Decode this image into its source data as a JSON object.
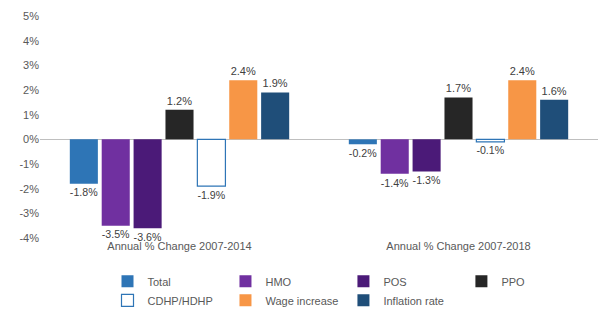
{
  "chart_data": {
    "type": "bar",
    "categories": [
      "Annual % Change 2007-2014",
      "Annual % Change 2007-2018"
    ],
    "series": [
      {
        "name": "Total",
        "color": "#2E75B6",
        "values": [
          -1.8,
          -0.2
        ],
        "value_labels": [
          "-1.8%",
          "-0.2%"
        ]
      },
      {
        "name": "HMO",
        "color": "#7030A0",
        "values": [
          -3.5,
          -1.4
        ],
        "value_labels": [
          "-3.5%",
          "-1.4%"
        ]
      },
      {
        "name": "POS",
        "color": "#4B1A78",
        "values": [
          -3.6,
          -1.3
        ],
        "value_labels": [
          "-3.6%",
          "-1.3%"
        ]
      },
      {
        "name": "PPO",
        "color": "#262626",
        "values": [
          1.2,
          1.7
        ],
        "value_labels": [
          "1.2%",
          "1.7%"
        ]
      },
      {
        "name": "CDHP/HDHP",
        "color": "#2E75B6",
        "marker": "hollow",
        "values": [
          -1.9,
          -0.1
        ],
        "value_labels": [
          "-1.9%",
          "-0.1%"
        ]
      },
      {
        "name": "Wage increase",
        "color": "#F79646",
        "values": [
          2.4,
          2.4
        ],
        "value_labels": [
          "2.4%",
          "2.4%"
        ]
      },
      {
        "name": "Inflation rate",
        "color": "#1F4E79",
        "values": [
          1.9,
          1.6
        ],
        "value_labels": [
          "1.9%",
          "1.6%"
        ]
      }
    ],
    "ylim": [
      -4,
      5
    ],
    "yticks": [
      {
        "value": -4,
        "label": "-4%"
      },
      {
        "value": -3,
        "label": "-3%"
      },
      {
        "value": -2,
        "label": "-2%"
      },
      {
        "value": -1,
        "label": "-1%"
      },
      {
        "value": 0,
        "label": "0%"
      },
      {
        "value": 1,
        "label": "1%"
      },
      {
        "value": 2,
        "label": "2%"
      },
      {
        "value": 3,
        "label": "3%"
      },
      {
        "value": 4,
        "label": "4%"
      },
      {
        "value": 5,
        "label": "5%"
      }
    ],
    "grid": false,
    "legend": "bottom",
    "data_labels": true
  }
}
